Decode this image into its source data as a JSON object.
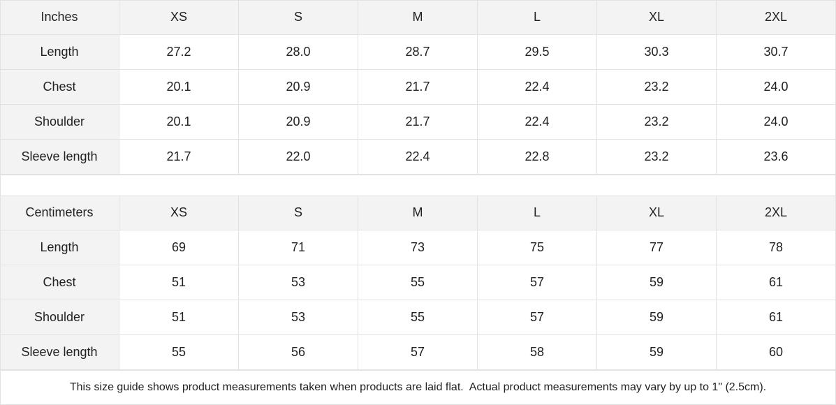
{
  "tables": [
    {
      "header": [
        "Inches",
        "XS",
        "S",
        "M",
        "L",
        "XL",
        "2XL"
      ],
      "rows": [
        {
          "label": "Length",
          "values": [
            "27.2",
            "28.0",
            "28.7",
            "29.5",
            "30.3",
            "30.7"
          ]
        },
        {
          "label": "Chest",
          "values": [
            "20.1",
            "20.9",
            "21.7",
            "22.4",
            "23.2",
            "24.0"
          ]
        },
        {
          "label": "Shoulder",
          "values": [
            "20.1",
            "20.9",
            "21.7",
            "22.4",
            "23.2",
            "24.0"
          ]
        },
        {
          "label": "Sleeve length",
          "values": [
            "21.7",
            "22.0",
            "22.4",
            "22.8",
            "23.2",
            "23.6"
          ]
        }
      ]
    },
    {
      "header": [
        "Centimeters",
        "XS",
        "S",
        "M",
        "L",
        "XL",
        "2XL"
      ],
      "rows": [
        {
          "label": "Length",
          "values": [
            "69",
            "71",
            "73",
            "75",
            "77",
            "78"
          ]
        },
        {
          "label": "Chest",
          "values": [
            "51",
            "53",
            "55",
            "57",
            "59",
            "61"
          ]
        },
        {
          "label": "Shoulder",
          "values": [
            "51",
            "53",
            "55",
            "57",
            "59",
            "61"
          ]
        },
        {
          "label": "Sleeve length",
          "values": [
            "55",
            "56",
            "57",
            "58",
            "59",
            "60"
          ]
        }
      ]
    }
  ],
  "note": "This size guide shows product measurements taken when products are laid flat.  Actual product measurements may vary by up to 1\" (2.5cm)."
}
